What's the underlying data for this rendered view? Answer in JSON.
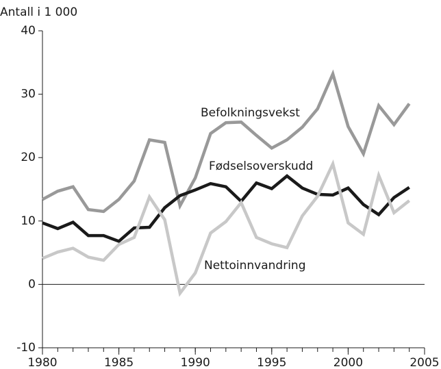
{
  "chart_data": {
    "type": "line",
    "ylabel": "Antall i 1 000",
    "x": [
      1980,
      1981,
      1982,
      1983,
      1984,
      1985,
      1986,
      1987,
      1988,
      1989,
      1990,
      1991,
      1992,
      1993,
      1994,
      1995,
      1996,
      1997,
      1998,
      1999,
      2000,
      2001,
      2002,
      2003,
      2004
    ],
    "series": [
      {
        "name": "Befolkningsvekst",
        "color": "#999999",
        "values": [
          13.4,
          14.7,
          15.4,
          11.8,
          11.5,
          13.4,
          16.3,
          22.8,
          22.4,
          12.4,
          16.8,
          23.8,
          25.5,
          25.6,
          23.5,
          21.5,
          22.8,
          24.8,
          27.7,
          33.2,
          24.9,
          20.6,
          28.2,
          25.2,
          28.5
        ]
      },
      {
        "name": "Fødselsoverskudd",
        "color": "#1a1a1a",
        "values": [
          9.7,
          8.8,
          9.8,
          7.7,
          7.7,
          6.8,
          8.9,
          9.0,
          12.1,
          14.0,
          14.9,
          15.9,
          15.4,
          13.1,
          16.0,
          15.1,
          17.1,
          15.2,
          14.2,
          14.1,
          15.2,
          12.6,
          11.0,
          13.7,
          15.3
        ]
      },
      {
        "name": "Nettoinnvandring",
        "color": "#c8c8c8",
        "values": [
          4.1,
          5.1,
          5.7,
          4.3,
          3.8,
          6.3,
          7.4,
          13.8,
          10.2,
          -1.4,
          1.8,
          8.1,
          9.9,
          12.9,
          7.4,
          6.4,
          5.8,
          10.8,
          13.9,
          19.0,
          9.7,
          7.9,
          17.2,
          11.3,
          13.2
        ]
      }
    ],
    "xlim": [
      1980,
      2005
    ],
    "xticks": [
      1980,
      1985,
      1990,
      1995,
      2000,
      2005
    ],
    "xminorticks": [
      1980,
      1981,
      1982,
      1983,
      1984,
      1985,
      1986,
      1987,
      1988,
      1989,
      1990,
      1991,
      1992,
      1993,
      1994,
      1995,
      1996,
      1997,
      1998,
      1999,
      2000,
      2001,
      2002,
      2003,
      2004,
      2005
    ],
    "ylim": [
      -10,
      40
    ],
    "yticks": [
      -10,
      0,
      10,
      20,
      30,
      40
    ]
  }
}
